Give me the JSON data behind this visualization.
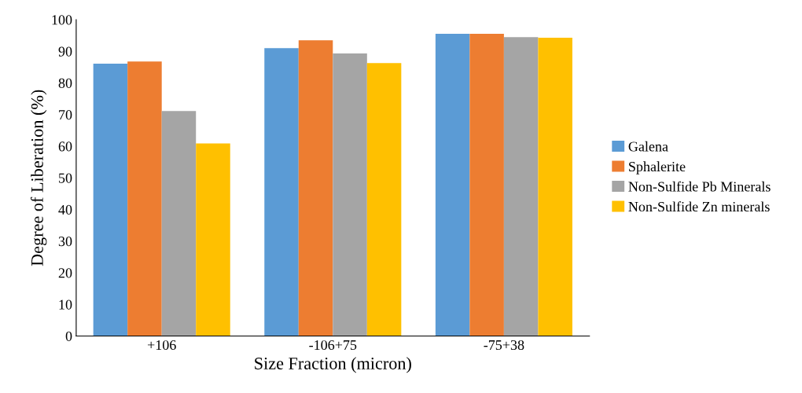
{
  "chart_data": {
    "type": "bar",
    "xlabel": "Size Fraction (micron)",
    "ylabel": "Degree of Liberation (%)",
    "categories": [
      "+106",
      "-106+75",
      "-75+38"
    ],
    "series": [
      {
        "name": "Galena",
        "color": "#5b9bd5",
        "values": [
          86.1,
          91.0,
          95.5
        ]
      },
      {
        "name": "Sphalerite",
        "color": "#ed7d31",
        "values": [
          86.8,
          93.5,
          95.5
        ]
      },
      {
        "name": "Non-Sulfide Pb Minerals",
        "color": "#a5a5a5",
        "values": [
          71.1,
          89.3,
          94.5
        ]
      },
      {
        "name": "Non-Sulfide Zn minerals",
        "color": "#ffc000",
        "values": [
          60.9,
          86.3,
          94.3
        ]
      }
    ],
    "ylim": [
      0,
      100
    ],
    "yticks": [
      0,
      10,
      20,
      30,
      40,
      50,
      60,
      70,
      80,
      90,
      100
    ],
    "grid": false,
    "legend": "right"
  }
}
